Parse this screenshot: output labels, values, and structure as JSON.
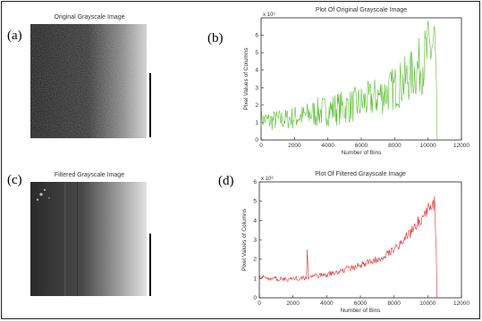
{
  "panels": {
    "a": {
      "label": "(a)",
      "title": "Original Grayscale Image"
    },
    "b": {
      "label": "(b)"
    },
    "c": {
      "label": "(c)",
      "title": "Filtered Grayscale Image"
    },
    "d": {
      "label": "(d)"
    }
  },
  "colors": {
    "original_line": "#4fba24",
    "filtered_line": "#e01b1b"
  },
  "chart_data": [
    {
      "type": "line",
      "title": "Plot Of Original Grayscale Image",
      "xlabel": "Number of Bins",
      "ylabel": "Pixel Values of Columns",
      "y_exponent": "x 10⁶",
      "xlim": [
        0,
        12000
      ],
      "ylim": [
        0,
        7
      ],
      "xticks": [
        0,
        2000,
        4000,
        6000,
        8000,
        10000,
        12000
      ],
      "yticks": [
        0,
        1,
        2,
        3,
        4,
        5,
        6
      ],
      "series": [
        {
          "x": [
            0,
            500,
            1000,
            1500,
            2000,
            2500,
            3000,
            3500,
            4000,
            4500,
            5000,
            5500,
            6000,
            6500,
            7000,
            7500,
            8000,
            8500,
            9000,
            9500,
            10000,
            10400,
            10500,
            10550
          ],
          "y": [
            1.2,
            1.1,
            1.15,
            1.2,
            1.3,
            1.35,
            1.5,
            1.6,
            1.7,
            1.8,
            1.85,
            2.0,
            2.1,
            2.3,
            2.5,
            2.7,
            3.0,
            3.3,
            3.7,
            4.2,
            5.0,
            5.6,
            3.0,
            0.0
          ],
          "noise": [
            0.5,
            0.6,
            0.6,
            0.6,
            0.7,
            0.7,
            0.8,
            0.9,
            0.9,
            1.0,
            1.0,
            1.0,
            1.1,
            1.1,
            1.2,
            1.2,
            1.3,
            1.4,
            1.5,
            1.7,
            2.0,
            2.2,
            0.5,
            0.0
          ]
        }
      ]
    },
    {
      "type": "line",
      "title": "Plot Of Filtered Grayscale Image",
      "xlabel": "Number of Bins",
      "ylabel": "Pixel Values of Columns",
      "y_exponent": "x 10⁶",
      "xlim": [
        0,
        12000
      ],
      "ylim": [
        0,
        6
      ],
      "xticks": [
        0,
        2000,
        4000,
        6000,
        8000,
        10000,
        12000
      ],
      "yticks": [
        0,
        1,
        2,
        3,
        4,
        5,
        6
      ],
      "series": [
        {
          "x": [
            0,
            500,
            1000,
            1500,
            2000,
            2500,
            2800,
            2850,
            2900,
            3500,
            4000,
            4500,
            5000,
            5500,
            6000,
            6500,
            7000,
            7500,
            8000,
            8500,
            9000,
            9500,
            10000,
            10400,
            10500,
            10550
          ],
          "y": [
            1.1,
            1.0,
            1.0,
            0.95,
            1.0,
            1.0,
            1.05,
            2.5,
            1.1,
            1.15,
            1.2,
            1.3,
            1.45,
            1.55,
            1.7,
            1.85,
            2.0,
            2.25,
            2.55,
            2.9,
            3.4,
            4.0,
            4.6,
            4.9,
            2.5,
            0.0
          ],
          "noise": [
            0.12,
            0.12,
            0.12,
            0.12,
            0.12,
            0.12,
            0.12,
            0.0,
            0.12,
            0.13,
            0.13,
            0.14,
            0.15,
            0.15,
            0.16,
            0.17,
            0.18,
            0.2,
            0.22,
            0.25,
            0.28,
            0.32,
            0.36,
            0.4,
            0.1,
            0.0
          ]
        }
      ]
    }
  ]
}
